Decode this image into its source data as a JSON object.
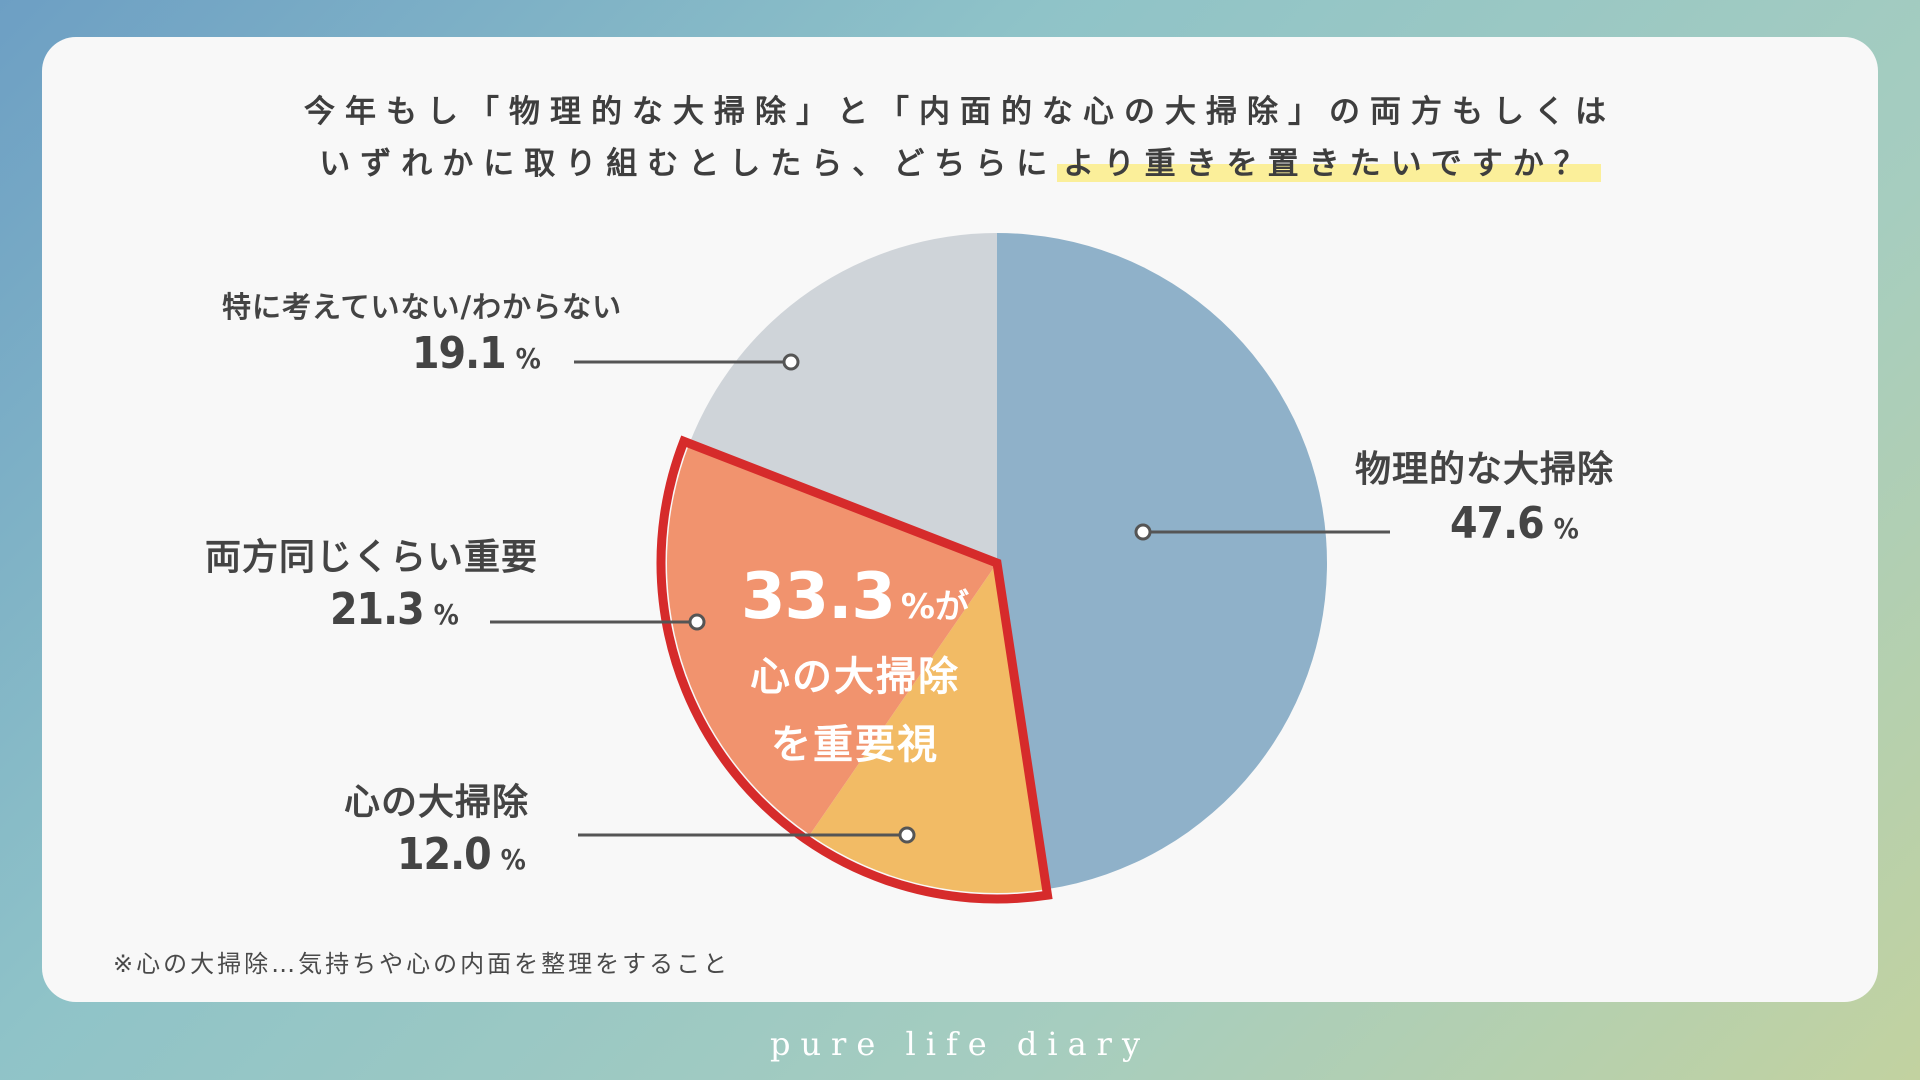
{
  "title_line1": "今年もし「物理的な大掃除」と「内面的な心の大掃除」の両方もしくは",
  "title_line2_pre": "いずれかに取り組むとしたら、どちらに",
  "title_line2_highlight": "より重きを置きたいですか？",
  "center_callout": {
    "value": "33.3",
    "unit": "%が",
    "line1": "心の大掃除",
    "line2": "を重要視"
  },
  "footnote": "※心の大掃除…気持ちや心の内面を整理をすること",
  "brand": "pure life diary",
  "colors": {
    "physical": "#8fb1c9",
    "mental": "#f2bb65",
    "both": "#f1936e",
    "none": "#cfd4d9",
    "highlight_border": "#d62b2b"
  },
  "chart_data": {
    "type": "pie",
    "unit": "%",
    "slices": [
      {
        "label": "物理的な大掃除",
        "value": 47.6,
        "value_label": "47.6",
        "color": "#8fb1c9"
      },
      {
        "label": "心の大掃除",
        "value": 12.0,
        "value_label": "12.0",
        "color": "#f2bb65"
      },
      {
        "label": "両方同じくらい重要",
        "value": 21.3,
        "value_label": "21.3",
        "color": "#f1936e"
      },
      {
        "label": "特に考えていない/わからない",
        "value": 19.1,
        "value_label": "19.1",
        "color": "#cfd4d9"
      }
    ],
    "highlighted_slices": [
      "心の大掃除",
      "両方同じくらい重要"
    ]
  }
}
